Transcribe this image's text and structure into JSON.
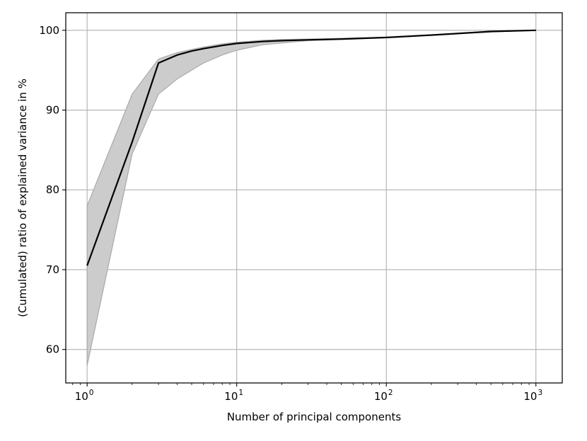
{
  "chart_data": {
    "type": "line",
    "title": "",
    "xlabel": "Number of principal components",
    "ylabel": "(Cumulated) ratio of explained variance in %",
    "x_scale": "log",
    "xlim": [
      0.72,
      1500
    ],
    "ylim": [
      55.8,
      102.2
    ],
    "grid": true,
    "legend": "none",
    "x_ticks": [
      {
        "base": "10",
        "exp": "0",
        "value": 1
      },
      {
        "base": "10",
        "exp": "1",
        "value": 10
      },
      {
        "base": "10",
        "exp": "2",
        "value": 100
      },
      {
        "base": "10",
        "exp": "3",
        "value": 1000
      }
    ],
    "y_ticks": [
      {
        "label": "60",
        "value": 60
      },
      {
        "label": "70",
        "value": 70
      },
      {
        "label": "80",
        "value": 80
      },
      {
        "label": "90",
        "value": 90
      },
      {
        "label": "100",
        "value": 100
      }
    ],
    "series": [
      {
        "kind": "mean",
        "color": "#000000",
        "x": [
          1,
          2,
          3,
          4,
          5,
          6,
          8,
          10,
          15,
          20,
          30,
          50,
          100,
          200,
          500,
          1000
        ],
        "y": [
          70.5,
          86.0,
          95.9,
          96.9,
          97.4,
          97.7,
          98.1,
          98.35,
          98.6,
          98.7,
          98.8,
          98.9,
          99.1,
          99.4,
          99.85,
          100.0
        ]
      }
    ],
    "band": {
      "color": "#cccccc",
      "edge_color": "#aaaaaa",
      "x": [
        1,
        2,
        3,
        4,
        5,
        6,
        8,
        10,
        15,
        20,
        30,
        50,
        100,
        200,
        500,
        1000
      ],
      "upper": [
        78.0,
        92.0,
        96.4,
        97.2,
        97.6,
        97.9,
        98.3,
        98.5,
        98.75,
        98.85,
        98.9,
        99.0,
        99.15,
        99.45,
        99.9,
        100.0
      ],
      "lower": [
        58.0,
        84.5,
        92.0,
        93.9,
        95.0,
        95.9,
        96.9,
        97.5,
        98.2,
        98.4,
        98.7,
        98.85,
        99.05,
        99.35,
        99.8,
        100.0
      ]
    },
    "colors": {
      "grid": "#b0b0b0",
      "axes": "#000000"
    }
  }
}
